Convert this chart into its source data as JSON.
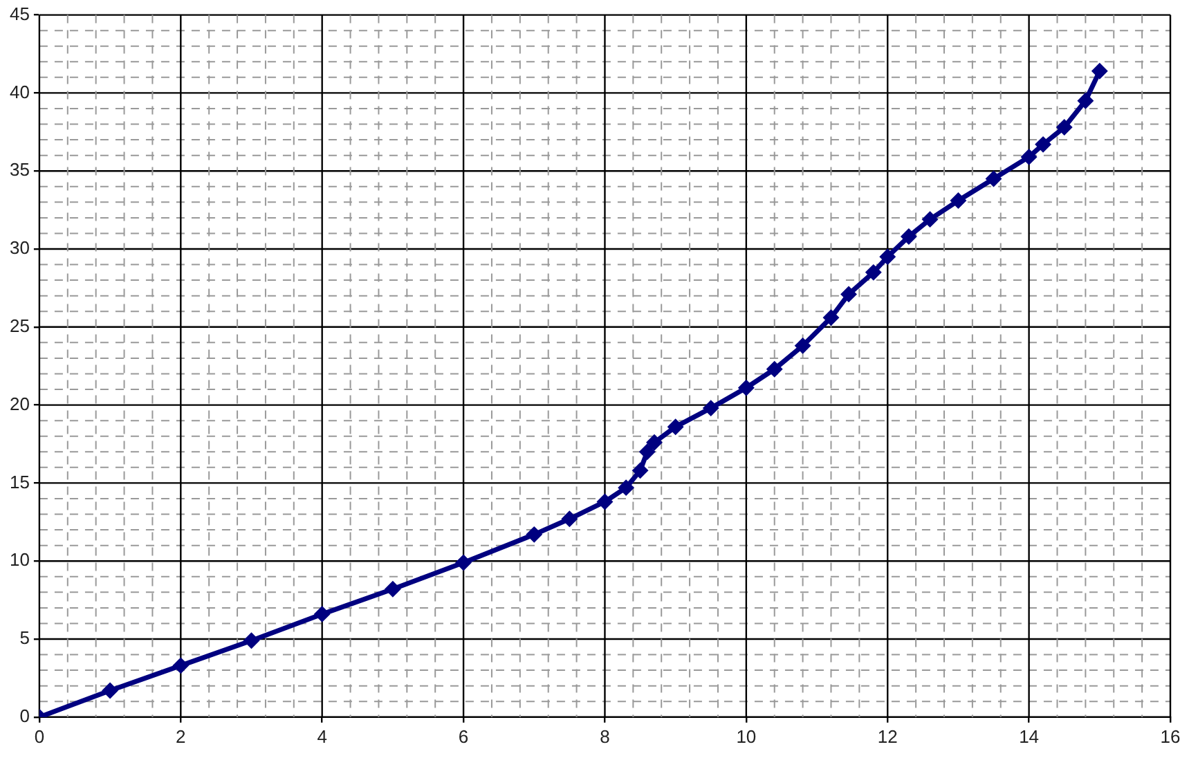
{
  "chart_data": {
    "type": "line",
    "x": [
      0,
      1,
      2,
      3,
      4,
      5,
      6,
      7,
      7.5,
      8,
      8.3,
      8.5,
      8.6,
      8.7,
      9,
      9.5,
      10,
      10.4,
      10.8,
      11.2,
      11.45,
      11.8,
      12,
      12.3,
      12.6,
      13,
      13.5,
      14,
      14.2,
      14.5,
      14.8,
      15
    ],
    "series": [
      {
        "color": "#000080",
        "values": [
          0,
          1.7,
          3.3,
          4.9,
          6.6,
          8.2,
          9.9,
          11.7,
          12.7,
          13.8,
          14.7,
          15.8,
          17.0,
          17.6,
          18.6,
          19.8,
          21.1,
          22.3,
          23.8,
          25.6,
          27.1,
          28.5,
          29.5,
          30.8,
          31.9,
          33.1,
          34.5,
          35.9,
          36.7,
          37.8,
          39.5,
          41.4
        ]
      }
    ],
    "xlim": [
      0,
      16
    ],
    "xticks": [
      0,
      {
        "value": 0.4,
        "label": null
      },
      {
        "value": 0.8,
        "label": null
      },
      {
        "value": 1.2,
        "label": null
      },
      {
        "value": 1.6,
        "label": null
      },
      2,
      {
        "value": 2.4,
        "label": null
      },
      {
        "value": 2.8,
        "label": null
      },
      {
        "value": 3.2,
        "label": null
      },
      {
        "value": 3.6,
        "label": null
      },
      4,
      {
        "value": 4.4,
        "label": null
      },
      {
        "value": 4.8,
        "label": null
      },
      {
        "value": 5.2,
        "label": null
      },
      {
        "value": 5.6,
        "label": null
      },
      6,
      {
        "value": 6.4,
        "label": null
      },
      {
        "value": 6.8,
        "label": null
      },
      {
        "value": 7.2,
        "label": null
      },
      {
        "value": 7.6,
        "label": null
      },
      8,
      {
        "value": 8.4,
        "label": null
      },
      {
        "value": 8.8,
        "label": null
      },
      {
        "value": 9.2,
        "label": null
      },
      {
        "value": 9.6,
        "label": null
      },
      10,
      {
        "value": 10.4,
        "label": null
      },
      {
        "value": 10.8,
        "label": null
      },
      {
        "value": 11.2,
        "label": null
      },
      {
        "value": 11.6,
        "label": null
      },
      12,
      {
        "value": 12.4,
        "label": null
      },
      {
        "value": 12.8,
        "label": null
      },
      {
        "value": 13.2,
        "label": null
      },
      {
        "value": 13.6,
        "label": null
      },
      14,
      {
        "value": 14.4,
        "label": null
      },
      {
        "value": 14.8,
        "label": null
      },
      {
        "value": 15.2,
        "label": null
      },
      {
        "value": 15.6,
        "label": null
      },
      16
    ],
    "ylim": [
      0,
      45
    ],
    "yticks": [
      0,
      {
        "value": 1,
        "label": null
      },
      {
        "value": 2,
        "label": null
      },
      {
        "value": 3,
        "label": null
      },
      {
        "value": 4,
        "label": null
      },
      5,
      {
        "value": 6,
        "label": null
      },
      {
        "value": 7,
        "label": null
      },
      {
        "value": 8,
        "label": null
      },
      {
        "value": 9,
        "label": null
      },
      10,
      {
        "value": 11,
        "label": null
      },
      {
        "value": 12,
        "label": null
      },
      {
        "value": 13,
        "label": null
      },
      {
        "value": 14,
        "label": null
      },
      15,
      {
        "value": 16,
        "label": null
      },
      {
        "value": 17,
        "label": null
      },
      {
        "value": 18,
        "label": null
      },
      {
        "value": 19,
        "label": null
      },
      20,
      {
        "value": 21,
        "label": null
      },
      {
        "value": 22,
        "label": null
      },
      {
        "value": 23,
        "label": null
      },
      {
        "value": 24,
        "label": null
      },
      25,
      {
        "value": 26,
        "label": null
      },
      {
        "value": 27,
        "label": null
      },
      {
        "value": 28,
        "label": null
      },
      {
        "value": 29,
        "label": null
      },
      30,
      {
        "value": 31,
        "label": null
      },
      {
        "value": 32,
        "label": null
      },
      {
        "value": 33,
        "label": null
      },
      {
        "value": 34,
        "label": null
      },
      35,
      {
        "value": 36,
        "label": null
      },
      {
        "value": 37,
        "label": null
      },
      {
        "value": 38,
        "label": null
      },
      {
        "value": 39,
        "label": null
      },
      40,
      {
        "value": 41,
        "label": null
      },
      {
        "value": 42,
        "label": null
      },
      {
        "value": 43,
        "label": null
      },
      {
        "value": 44,
        "label": null
      },
      45
    ],
    "grid": true,
    "legend": false,
    "marker": "diamond",
    "line_style": "solid"
  }
}
